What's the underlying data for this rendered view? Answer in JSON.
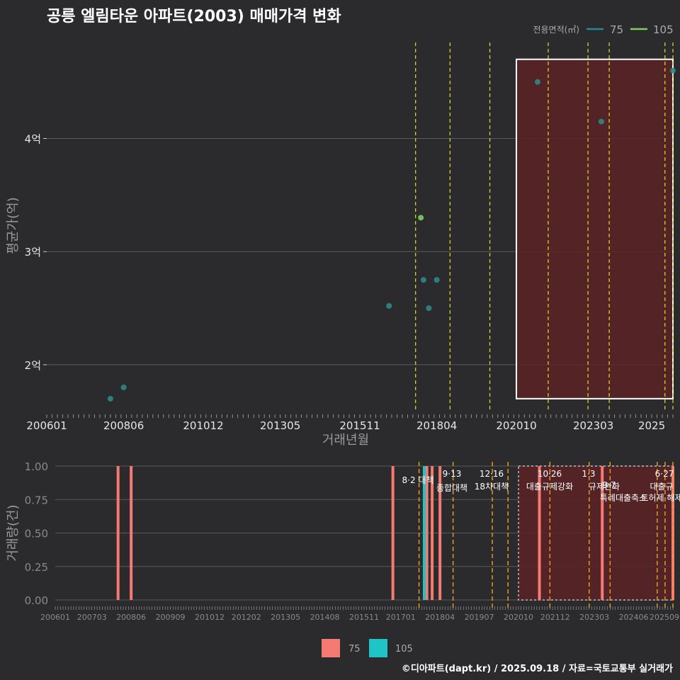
{
  "title": "공릉 엘림타운 아파트(2003) 매매가격 변화",
  "caption": "©디아파트(dapt.kr) / 2025.09.18 / 자료=국토교통부 실거래가",
  "colors": {
    "bg": "#2b2b2d",
    "grid": "#5a5a5a",
    "series_75_top": "#2a8a8a",
    "series_105_top": "#7ccf5a",
    "series_75_bottom": "#f47a72",
    "series_105_bottom": "#1fc4c4",
    "policy_line_top": "#d4d12a",
    "policy_line_bottom": "#f0a020",
    "highlight_fill": "#5a2226",
    "highlight_stroke": "#ffffff"
  },
  "chart_data": [
    {
      "type": "scatter",
      "xlabel": "거래년월",
      "ylabel": "평균가(억)",
      "x_ticks": [
        "200601",
        "200806",
        "201012",
        "201305",
        "201511",
        "201804",
        "202010",
        "202303",
        "2025"
      ],
      "y_ticks": [
        "2억",
        "3억",
        "4억"
      ],
      "ylim": [
        1.58,
        4.88
      ],
      "legend_title": "전용면적(㎡)",
      "legend": [
        "75",
        "105"
      ],
      "legend_position": "top-right",
      "series": [
        {
          "name": "75",
          "points": [
            {
              "x": "2008-01",
              "y": 1.7
            },
            {
              "x": "2008-06",
              "y": 1.8
            },
            {
              "x": "2016-10",
              "y": 2.52
            },
            {
              "x": "2017-11",
              "y": 2.75
            },
            {
              "x": "2018-01",
              "y": 2.5
            },
            {
              "x": "2018-04",
              "y": 2.75
            },
            {
              "x": "2021-06",
              "y": 4.5
            },
            {
              "x": "2023-06",
              "y": 4.15
            },
            {
              "x": "2025-09",
              "y": 4.6
            }
          ]
        },
        {
          "name": "105",
          "points": [
            {
              "x": "2017-10",
              "y": 3.3
            }
          ]
        }
      ],
      "policy_dates": [
        "2017-08",
        "2018-09",
        "2019-12",
        "2021-10",
        "2023-01",
        "2023-09",
        "2025-06",
        "2025-09"
      ],
      "highlight": {
        "from": "2020-10",
        "to": "2025-09",
        "ymin": 1.7,
        "ymax": 4.7
      }
    },
    {
      "type": "bar",
      "xlabel": "",
      "ylabel": "거래량(건)",
      "x_ticks": [
        "200601",
        "200703",
        "200806",
        "200909",
        "201012",
        "201202",
        "201305",
        "201408",
        "201511",
        "201701",
        "201804",
        "201907",
        "202010",
        "202112",
        "202303",
        "202406",
        "202509"
      ],
      "y_ticks": [
        "0.00",
        "0.25",
        "0.50",
        "0.75",
        "1.00"
      ],
      "ylim": [
        0,
        1
      ],
      "legend": [
        "75",
        "105"
      ],
      "legend_position": "bottom",
      "series": [
        {
          "name": "75",
          "points": [
            {
              "x": "2008-01",
              "y": 1
            },
            {
              "x": "2008-06",
              "y": 1
            },
            {
              "x": "2016-10",
              "y": 1
            },
            {
              "x": "2017-11",
              "y": 1
            },
            {
              "x": "2018-01",
              "y": 1
            },
            {
              "x": "2018-04",
              "y": 1
            },
            {
              "x": "2021-06",
              "y": 1
            },
            {
              "x": "2023-06",
              "y": 1
            },
            {
              "x": "2025-09",
              "y": 1
            }
          ]
        },
        {
          "name": "105",
          "points": [
            {
              "x": "2017-10",
              "y": 1
            }
          ]
        }
      ],
      "policies": [
        {
          "date": "2017-08",
          "label": "8·2 대책",
          "label2": ""
        },
        {
          "date": "2018-09",
          "label": "9·13",
          "label2": "종합대책"
        },
        {
          "date": "2019-12",
          "label": "12·16",
          "label2": "18차대책"
        },
        {
          "date": "2020-06",
          "label": "",
          "label2": ""
        },
        {
          "date": "2021-10",
          "label": "10·26",
          "label2": "대출규제강화"
        },
        {
          "date": "2023-01",
          "label": "1·3",
          "label2": "규제완화"
        },
        {
          "date": "2023-09",
          "label": "",
          "label2": "9·7"
        },
        {
          "date": "2025-03",
          "label": "",
          "label2": "특례대출축소"
        },
        {
          "date": "2025-06",
          "label": "6·27",
          "label2": "대출규"
        },
        {
          "date": "2025-09",
          "label": "",
          "label2": "토허제 해제"
        }
      ],
      "highlight": {
        "from": "2020-10",
        "to": "2025-09"
      }
    }
  ]
}
